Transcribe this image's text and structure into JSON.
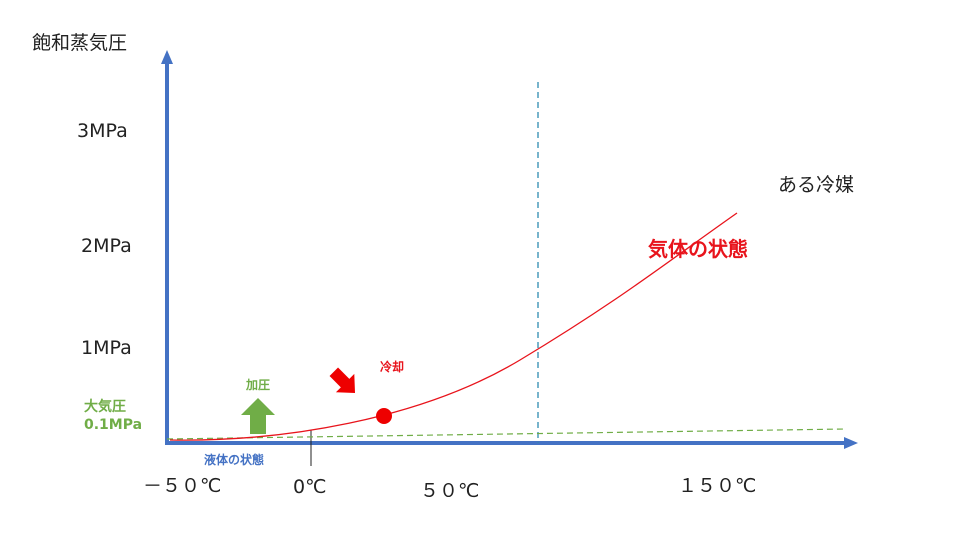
{
  "axis": {
    "y_title": "飽和蒸気圧",
    "y_ticks": [
      "3MPa",
      "2MPa",
      "1MPa"
    ],
    "x_ticks": [
      "－５０℃",
      "0℃",
      "５０℃",
      "１５０℃"
    ]
  },
  "labels": {
    "refrigerant": "ある冷媒",
    "gas_state": "気体の状態",
    "cooling": "冷却",
    "pressurize": "加圧",
    "atmospheric_line1": "大気圧",
    "atmospheric_line2": "0.1MPa",
    "liquid_state": "液体の状態"
  },
  "colors": {
    "axis": "#4472c4",
    "curve": "#e8141c",
    "atmospheric": "#70ad47",
    "critical_line": "#2e8bb0",
    "point": "#ee0000"
  },
  "icons": {
    "cool_arrow": "arrow-down-left-icon",
    "pressure_arrow": "arrow-up-icon"
  }
}
